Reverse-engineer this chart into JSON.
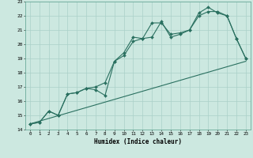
{
  "xlabel": "Humidex (Indice chaleur)",
  "bg_color": "#cce8e0",
  "grid_color": "#aad0c8",
  "line_color": "#2a7060",
  "xlim": [
    -0.5,
    23.5
  ],
  "ylim": [
    14,
    23
  ],
  "xticks": [
    0,
    1,
    2,
    3,
    4,
    5,
    6,
    7,
    8,
    9,
    10,
    11,
    12,
    13,
    14,
    15,
    16,
    17,
    18,
    19,
    20,
    21,
    22,
    23
  ],
  "yticks": [
    14,
    15,
    16,
    17,
    18,
    19,
    20,
    21,
    22,
    23
  ],
  "line1_x": [
    0,
    1,
    2,
    3,
    4,
    5,
    6,
    7,
    8,
    9,
    10,
    11,
    12,
    13,
    14,
    15,
    16,
    17,
    18,
    19,
    20,
    21,
    22,
    23
  ],
  "line1_y": [
    14.4,
    14.5,
    15.3,
    15.0,
    16.5,
    16.6,
    16.9,
    17.0,
    17.3,
    18.8,
    19.4,
    20.5,
    20.4,
    21.5,
    21.5,
    20.7,
    20.8,
    21.0,
    22.2,
    22.6,
    22.2,
    22.0,
    20.4,
    19.0
  ],
  "line2_x": [
    0,
    1,
    2,
    3,
    4,
    5,
    6,
    7,
    8,
    9,
    10,
    11,
    12,
    13,
    14,
    15,
    16,
    17,
    18,
    19,
    20,
    21,
    22,
    23
  ],
  "line2_y": [
    14.4,
    14.5,
    15.3,
    15.0,
    16.5,
    16.6,
    16.9,
    16.8,
    16.4,
    18.8,
    19.2,
    20.2,
    20.4,
    20.5,
    21.6,
    20.5,
    20.7,
    21.0,
    22.0,
    22.3,
    22.3,
    22.0,
    20.4,
    19.0
  ],
  "line3_x": [
    0,
    23
  ],
  "line3_y": [
    14.4,
    18.8
  ]
}
